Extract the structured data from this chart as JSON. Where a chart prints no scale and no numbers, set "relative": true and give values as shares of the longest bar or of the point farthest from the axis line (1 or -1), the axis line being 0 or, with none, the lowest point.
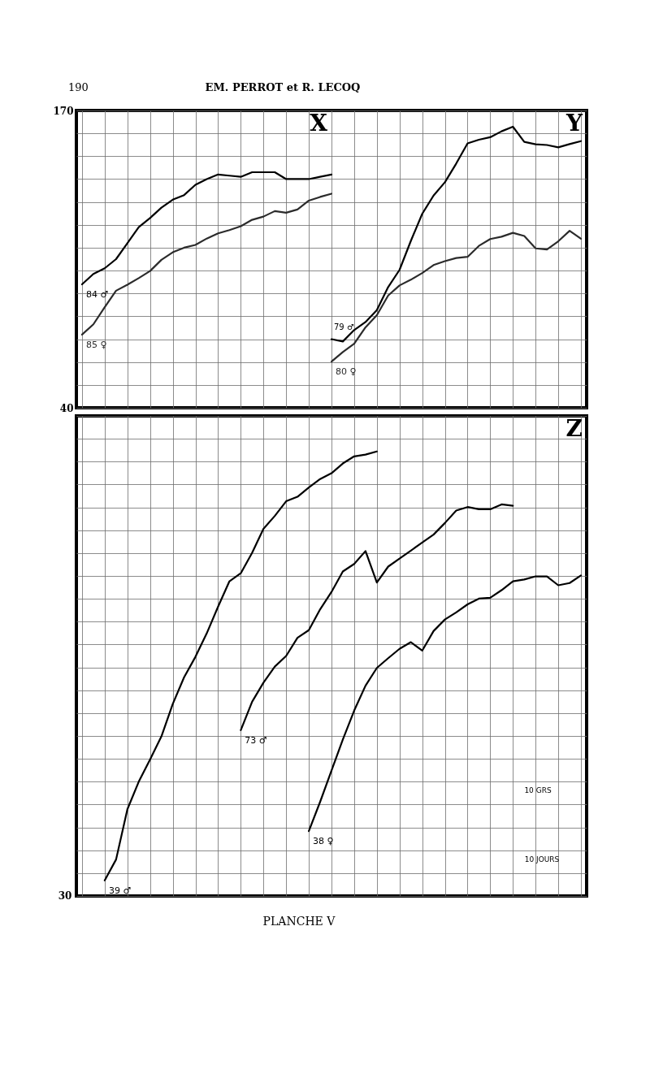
{
  "chart_data": [
    {
      "type": "line",
      "annotations": [
        "190",
        "EM. PERROT et R. LECOQ",
        "X",
        "Y"
      ],
      "categories": [
        null,
        null,
        null,
        null,
        null,
        null,
        null,
        null,
        null,
        null,
        null,
        null,
        null,
        null,
        null,
        null,
        null,
        null,
        null,
        null,
        null,
        null,
        null,
        null,
        null,
        null,
        null,
        null,
        null,
        null,
        null,
        null,
        null,
        null,
        null,
        null,
        null,
        null,
        null,
        null,
        null,
        null,
        null,
        null,
        null
      ],
      "ylim": [
        40,
        170
      ],
      "yticks": [
        40,
        {
          "value": 50,
          "label": null
        },
        {
          "value": 60,
          "label": null
        },
        {
          "value": 70,
          "label": null
        },
        {
          "value": 80,
          "label": null
        },
        {
          "value": 90,
          "label": null
        },
        {
          "value": 100,
          "label": null
        },
        {
          "value": 110,
          "label": null
        },
        {
          "value": 120,
          "label": null
        },
        {
          "value": 130,
          "label": null
        },
        {
          "value": 140,
          "label": null
        },
        {
          "value": 150,
          "label": null
        },
        {
          "value": 160,
          "label": null
        },
        170
      ],
      "tick_labels": "y",
      "grid": true,
      "series": [
        {
          "name": "84 ♂",
          "color": "#000000",
          "values": [
            94,
            98.5,
            101,
            105,
            112,
            119,
            123,
            127.5,
            131,
            133,
            137.5,
            140,
            142,
            141.5,
            141,
            143,
            143,
            143,
            140,
            140,
            140,
            141,
            142,
            null,
            null,
            null,
            null,
            null,
            null,
            null,
            null,
            null,
            null,
            null,
            null,
            null,
            null,
            null,
            null,
            null,
            null,
            null,
            null,
            null,
            null
          ]
        },
        {
          "name": "85 ♀",
          "color": "#2b2b2b",
          "values": [
            72,
            76.5,
            84,
            91.2,
            93.8,
            96.7,
            99.8,
            104.7,
            108,
            110,
            111.2,
            114,
            116.3,
            117.7,
            119.4,
            122.2,
            123.6,
            126,
            125.3,
            126.7,
            130.6,
            132.2,
            133.6,
            null,
            null,
            null,
            null,
            null,
            null,
            null,
            null,
            null,
            null,
            null,
            null,
            null,
            null,
            null,
            null,
            null,
            null,
            null,
            null,
            null,
            null
          ]
        },
        {
          "name": "79 ♂",
          "color": "#000000",
          "values": [
            null,
            null,
            null,
            null,
            null,
            null,
            null,
            null,
            null,
            null,
            null,
            null,
            null,
            null,
            null,
            null,
            null,
            null,
            null,
            null,
            null,
            null,
            70,
            69,
            74,
            77.5,
            82.7,
            92.8,
            100.3,
            113,
            124.8,
            132.8,
            138.6,
            146.8,
            155.6,
            157.2,
            158.3,
            160.9,
            162.9,
            156.3,
            155.2,
            154.9,
            153.9,
            155.3,
            156.6
          ]
        },
        {
          "name": "80 ♀",
          "color": "#2b2b2b",
          "values": [
            null,
            null,
            null,
            null,
            null,
            null,
            null,
            null,
            null,
            null,
            null,
            null,
            null,
            null,
            null,
            null,
            null,
            null,
            null,
            null,
            null,
            null,
            60.2,
            64.4,
            68,
            75.2,
            80.5,
            89.1,
            93.5,
            96,
            98.9,
            102.4,
            104.1,
            105.5,
            106,
            110.8,
            113.8,
            114.8,
            116.5,
            115.1,
            109.7,
            109.2,
            112.8,
            117.4,
            113.9
          ]
        }
      ]
    },
    {
      "type": "line",
      "title": "Z",
      "relative": true,
      "annotations": [
        "30",
        "10 GRS",
        "10 JOURS",
        "PLANCHE V"
      ],
      "categories": [
        null,
        null,
        null,
        null,
        null,
        null,
        null,
        null,
        null,
        null,
        null,
        null,
        null,
        null,
        null,
        null,
        null,
        null,
        null,
        null,
        null,
        null,
        null,
        null,
        null,
        null,
        null,
        null,
        null,
        null,
        null,
        null,
        null,
        null,
        null,
        null,
        null,
        null,
        null,
        null,
        null,
        null,
        null,
        null,
        null
      ],
      "tick_labels": false,
      "grid": true,
      "series": [
        {
          "name": "39 ♂",
          "color": "#000000",
          "values": [
            null,
            null,
            0.035,
            0.082,
            0.195,
            0.257,
            0.307,
            0.359,
            0.432,
            0.492,
            0.538,
            0.591,
            0.651,
            0.708,
            0.726,
            0.772,
            0.826,
            0.855,
            0.888,
            0.898,
            0.919,
            0.938,
            0.951,
            0.973,
            0.989,
            0.993,
            1,
            null,
            null,
            null,
            null,
            null,
            null,
            null,
            null,
            null,
            null,
            null,
            null,
            null,
            null,
            null,
            null,
            null,
            null
          ]
        },
        {
          "name": "73 ♂",
          "color": "#000000",
          "values": [
            null,
            null,
            null,
            null,
            null,
            null,
            null,
            null,
            null,
            null,
            null,
            null,
            null,
            null,
            0.373,
            0.437,
            0.48,
            0.516,
            0.54,
            0.581,
            0.598,
            0.645,
            0.684,
            0.73,
            0.747,
            0.776,
            0.705,
            0.741,
            0.759,
            0.777,
            0.795,
            0.813,
            0.839,
            0.867,
            0.875,
            0.87,
            0.87,
            0.881,
            0.878,
            null,
            null,
            null,
            null,
            null,
            null
          ]
        },
        {
          "name": "38 ♀",
          "color": "#000000",
          "values": [
            null,
            null,
            null,
            null,
            null,
            null,
            null,
            null,
            null,
            null,
            null,
            null,
            null,
            null,
            null,
            null,
            null,
            null,
            null,
            null,
            0.146,
            0.212,
            0.282,
            0.352,
            0.417,
            0.473,
            0.513,
            0.535,
            0.556,
            0.571,
            0.552,
            0.596,
            0.622,
            0.638,
            0.656,
            0.669,
            0.671,
            0.688,
            0.708,
            0.712,
            0.719,
            0.719,
            0.699,
            0.704,
            0.721
          ]
        }
      ]
    }
  ]
}
